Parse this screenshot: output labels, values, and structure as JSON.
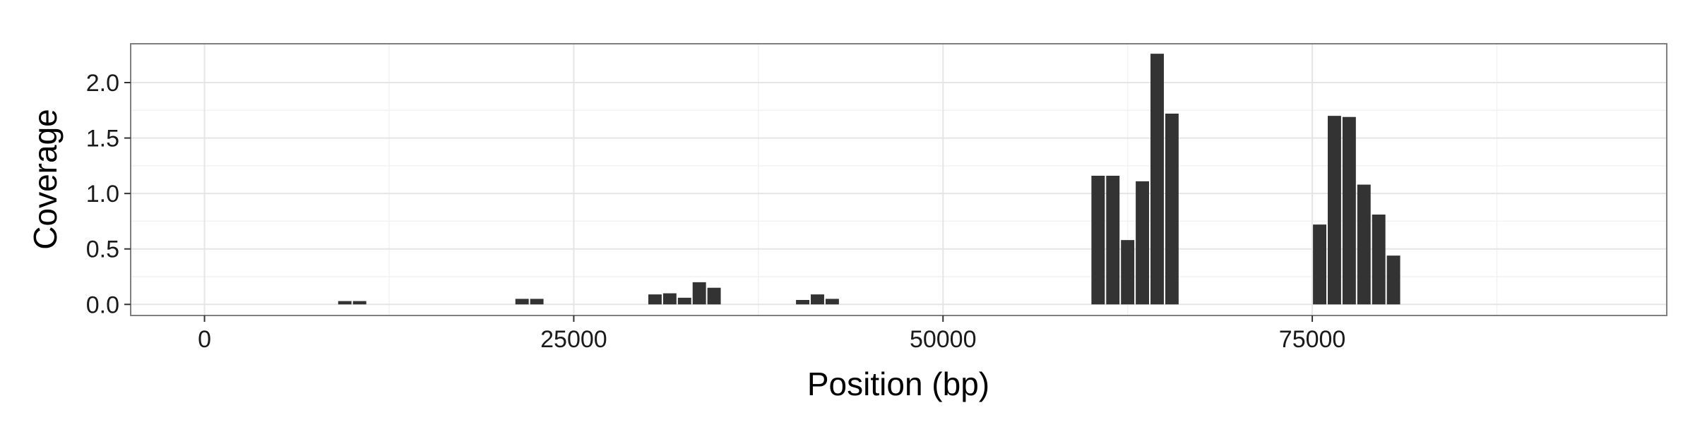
{
  "chart_data": {
    "type": "bar",
    "title": "",
    "xlabel": "Position (bp)",
    "ylabel": "Coverage",
    "xlim": [
      -5000,
      99000
    ],
    "ylim": [
      -0.1,
      2.35
    ],
    "xticks": [
      0,
      25000,
      50000,
      75000
    ],
    "xtick_labels": [
      "0",
      "25000",
      "50000",
      "75000"
    ],
    "yticks": [
      0.0,
      0.5,
      1.0,
      1.5,
      2.0
    ],
    "ytick_labels": [
      "0.0",
      "0.5",
      "1.0",
      "1.5",
      "2.0"
    ],
    "bin_width": 1000,
    "grid": true,
    "theme": "bw",
    "bar_color": "#333333",
    "series": [
      {
        "x": [
          9500,
          10500,
          21500,
          22500,
          30500,
          31500,
          32500,
          33500,
          34500,
          40500,
          41500,
          42500,
          60500,
          61500,
          62500,
          63500,
          64500,
          65500,
          75500,
          76500,
          77500,
          78500,
          79500,
          80500
        ],
        "values": [
          0.03,
          0.03,
          0.05,
          0.05,
          0.09,
          0.1,
          0.06,
          0.2,
          0.15,
          0.04,
          0.09,
          0.05,
          1.16,
          1.16,
          0.58,
          1.11,
          2.26,
          1.72,
          0.72,
          1.7,
          1.69,
          1.08,
          0.81,
          0.44
        ]
      }
    ]
  }
}
